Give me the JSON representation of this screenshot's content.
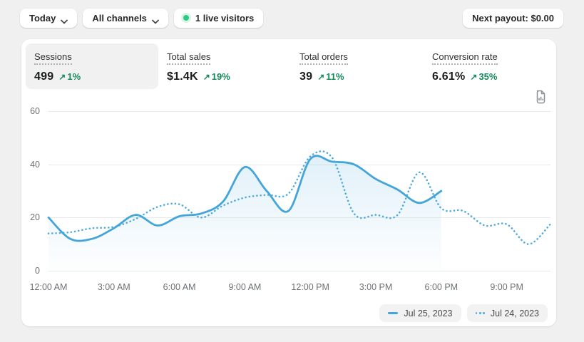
{
  "topbar": {
    "date_range": "Today",
    "channel_filter": "All channels",
    "live_visitors": "1 live visitors",
    "next_payout": "Next payout: $0.00"
  },
  "metrics": [
    {
      "label": "Sessions",
      "value": "499",
      "delta": "1%",
      "selected": true
    },
    {
      "label": "Total sales",
      "value": "$1.4K",
      "delta": "19%",
      "selected": false
    },
    {
      "label": "Total orders",
      "value": "39",
      "delta": "11%",
      "selected": false
    },
    {
      "label": "Conversion rate",
      "value": "6.61%",
      "delta": "35%",
      "selected": false
    }
  ],
  "ui": {
    "delta_arrow": "↗"
  },
  "icons": {
    "today_button": "chevron-down",
    "channels_button": "chevron-down",
    "live_badge": "green-dot",
    "report_button": "file-bar-chart"
  },
  "colors": {
    "accent_blue_solid": "#44a5d9",
    "accent_blue_dotted": "#4fabdf",
    "positive_green": "#148a5c",
    "live_dot_green": "#2bcb87",
    "card_bg": "#ffffff",
    "page_bg": "#f0f0f0",
    "selected_metric_bg": "#f1f1f1"
  },
  "chart_data": {
    "type": "line",
    "metric": "Sessions",
    "x_unit": "hour of day",
    "ylim": [
      0,
      60
    ],
    "grid": true,
    "y_ticks": [
      60,
      40,
      20,
      0
    ],
    "x_tick_hours": [
      0,
      3,
      6,
      9,
      12,
      15,
      18,
      21
    ],
    "x_ticks": [
      "12:00 AM",
      "3:00 AM",
      "6:00 AM",
      "9:00 AM",
      "12:00 PM",
      "3:00 PM",
      "6:00 PM",
      "9:00 PM"
    ],
    "legend_position": "bottom-right",
    "legend": [
      {
        "label": "Jul 25, 2023",
        "style": "solid"
      },
      {
        "label": "Jul 24, 2023",
        "style": "dotted"
      }
    ],
    "series": [
      {
        "name": "Jul 25, 2023",
        "style": "solid",
        "color": "#44a5d9",
        "area_fill": true,
        "x": [
          0,
          1,
          2,
          3,
          4,
          5,
          6,
          7,
          8,
          9,
          10,
          11,
          12,
          13,
          14,
          15,
          16,
          17,
          18
        ],
        "values": [
          20,
          12,
          12,
          16,
          21,
          17,
          20.5,
          21.5,
          26,
          39,
          30,
          22.5,
          42,
          41,
          40,
          34.5,
          30.5,
          25.5,
          30
        ]
      },
      {
        "name": "Jul 24, 2023",
        "style": "dotted",
        "color": "#4fabdf",
        "area_fill": false,
        "x": [
          0,
          1,
          2,
          3,
          4,
          5,
          6,
          7,
          8,
          9,
          10,
          11,
          12,
          13,
          14,
          15,
          16,
          17,
          18,
          19,
          20,
          21,
          22,
          23
        ],
        "values": [
          14,
          14.5,
          16,
          16.5,
          19.5,
          24,
          25,
          20,
          24.5,
          27.5,
          28.5,
          29,
          43,
          42.5,
          21.5,
          21,
          21,
          37,
          23.5,
          22.5,
          17,
          17.5,
          10,
          17.5
        ]
      }
    ]
  }
}
